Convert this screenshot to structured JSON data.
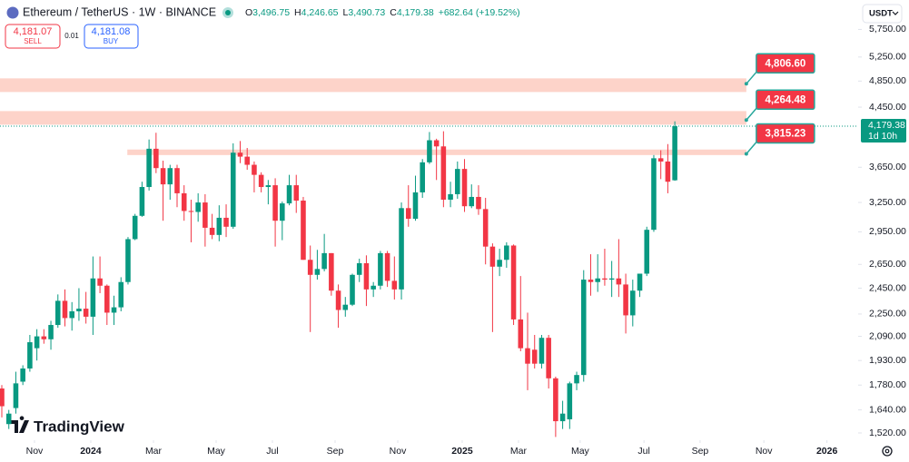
{
  "header": {
    "symbol": "Ethereum / TetherUS · 1W · BINANCE",
    "ohlc": [
      {
        "key": "O",
        "value": "3,496.75"
      },
      {
        "key": "H",
        "value": "4,246.65"
      },
      {
        "key": "L",
        "value": "3,490.73"
      },
      {
        "key": "C",
        "value": "4,179.38"
      }
    ],
    "change": "+682.64 (+19.52%)",
    "sell": {
      "price": "4,181.07",
      "label": "SELL"
    },
    "spread": "0.01",
    "buy": {
      "price": "4,181.08",
      "label": "BUY"
    },
    "currency": "USDT",
    "logo": "TradingView"
  },
  "chart_data": {
    "type": "candlestick",
    "log_scale": true,
    "up_color": "#089981",
    "down_color": "#f23645",
    "open": [
      1760,
      1565,
      1650,
      1800,
      1880,
      2010,
      2090,
      2070,
      2170,
      2350,
      2220,
      2270,
      2290,
      2230,
      2530,
      2470,
      2260,
      2300,
      2500,
      2880,
      3110,
      3420,
      3880,
      3640,
      3450,
      3640,
      3350,
      3160,
      3150,
      3250,
      2990,
      2920,
      3090,
      3000,
      3830,
      3780,
      3680,
      3560,
      3420,
      3440,
      3060,
      3240,
      3440,
      3270,
      2690,
      2560,
      2610,
      2750,
      2430,
      2280,
      2320,
      2560,
      2660,
      2440,
      2470,
      2750,
      2510,
      2440,
      3190,
      3080,
      3360,
      3710,
      3990,
      3910,
      3280,
      3340,
      3630,
      3210,
      3310,
      3180,
      2810,
      2630,
      2690,
      2820,
      2210,
      2010,
      2000,
      1910,
      2080,
      1820,
      1580,
      1590,
      1790,
      1840,
      2520,
      2500,
      2530,
      2520,
      2530,
      2480,
      2240,
      2430,
      2570,
      2970,
      3760,
      3720,
      3496.75
    ],
    "high": [
      1780,
      1640,
      1860,
      1900,
      2100,
      2140,
      2140,
      2200,
      2400,
      2440,
      2340,
      2450,
      2420,
      2720,
      2720,
      2480,
      2390,
      2540,
      2900,
      3130,
      3480,
      4000,
      4090,
      3730,
      3680,
      3680,
      3440,
      3280,
      3350,
      3340,
      3130,
      3220,
      3230,
      3950,
      3980,
      3890,
      3720,
      3590,
      3500,
      3520,
      3260,
      3560,
      3560,
      3310,
      2820,
      2780,
      2930,
      2750,
      2480,
      2380,
      2570,
      2700,
      2730,
      2500,
      2770,
      2770,
      2720,
      3250,
      3440,
      3550,
      3750,
      4100,
      4010,
      4110,
      3480,
      3720,
      3750,
      3450,
      3440,
      3300,
      2840,
      2790,
      2850,
      2830,
      2550,
      2260,
      2100,
      2100,
      2100,
      1830,
      1690,
      1800,
      1860,
      2600,
      2740,
      2740,
      2790,
      2680,
      2880,
      2570,
      2520,
      2570,
      3000,
      3800,
      3860,
      3940,
      4246.65
    ],
    "low": [
      1600,
      1540,
      1620,
      1780,
      1860,
      1930,
      2040,
      2000,
      2150,
      2160,
      2130,
      2200,
      2180,
      2100,
      2410,
      2170,
      2170,
      2270,
      2480,
      2870,
      3100,
      3380,
      3580,
      3060,
      3280,
      3200,
      3060,
      2850,
      3050,
      2810,
      2880,
      2860,
      2900,
      2980,
      3700,
      3620,
      3360,
      3360,
      3230,
      2810,
      2870,
      3220,
      3140,
      2690,
      2120,
      2520,
      2590,
      2390,
      2150,
      2230,
      2310,
      2500,
      2310,
      2380,
      2440,
      2460,
      2360,
      2360,
      3000,
      3060,
      3300,
      3690,
      3500,
      3200,
      3200,
      3290,
      3150,
      3190,
      3120,
      2650,
      2120,
      2550,
      2620,
      2170,
      1990,
      1750,
      1880,
      1880,
      1760,
      1500,
      1540,
      1540,
      1750,
      1800,
      2390,
      2420,
      2470,
      2380,
      2380,
      2110,
      2160,
      2380,
      2550,
      2950,
      3510,
      3350,
      3490.73
    ],
    "close": [
      1660,
      1620,
      1790,
      1880,
      2050,
      2090,
      2070,
      2170,
      2350,
      2220,
      2270,
      2290,
      2230,
      2530,
      2470,
      2260,
      2300,
      2500,
      2880,
      3110,
      3420,
      3880,
      3640,
      3450,
      3640,
      3350,
      3160,
      3150,
      3250,
      2990,
      2920,
      3090,
      3000,
      3830,
      3780,
      3680,
      3560,
      3420,
      3440,
      3060,
      3240,
      3440,
      3270,
      2690,
      2560,
      2610,
      2750,
      2430,
      2280,
      2320,
      2560,
      2660,
      2440,
      2470,
      2750,
      2510,
      2440,
      3190,
      3080,
      3360,
      3710,
      3990,
      3910,
      3280,
      3340,
      3630,
      3210,
      3310,
      3180,
      2810,
      2630,
      2690,
      2820,
      2210,
      2010,
      1910,
      1910,
      2080,
      1820,
      1580,
      1620,
      1790,
      1840,
      2520,
      2500,
      2530,
      2520,
      2530,
      2480,
      2240,
      2430,
      2570,
      2970,
      3760,
      3720,
      3480,
      4179.38
    ],
    "xlim": [
      -0.26,
      122.15
    ],
    "xticks": [
      {
        "value": 4.66,
        "label": "Nov"
      },
      {
        "value": 12.69,
        "label": "2024"
      },
      {
        "value": 21.63,
        "label": "Mar"
      },
      {
        "value": 30.57,
        "label": "May"
      },
      {
        "value": 38.6,
        "label": "Jul"
      },
      {
        "value": 47.54,
        "label": "Sep"
      },
      {
        "value": 56.48,
        "label": "Nov"
      },
      {
        "value": 65.67,
        "label": "2025"
      },
      {
        "value": 73.7,
        "label": "Mar"
      },
      {
        "value": 82.5,
        "label": "May"
      },
      {
        "value": 91.6,
        "label": "Jul"
      },
      {
        "value": 99.6,
        "label": "Sep"
      },
      {
        "value": 108.7,
        "label": "Nov"
      },
      {
        "value": 117.7,
        "label": "2026"
      }
    ],
    "ylim": [
      1484,
      6336
    ],
    "yticks": [
      {
        "value": 5750,
        "label": "5,750.00"
      },
      {
        "value": 5250,
        "label": "5,250.00"
      },
      {
        "value": 4850,
        "label": "4,850.00"
      },
      {
        "value": 4450,
        "label": "4,450.00"
      },
      {
        "value": 3650,
        "label": "3,650.00"
      },
      {
        "value": 3250,
        "label": "3,250.00"
      },
      {
        "value": 2950,
        "label": "2,950.00"
      },
      {
        "value": 2650,
        "label": "2,650.00"
      },
      {
        "value": 2450,
        "label": "2,450.00"
      },
      {
        "value": 2250,
        "label": "2,250.00"
      },
      {
        "value": 2090,
        "label": "2,090.00"
      },
      {
        "value": 1930,
        "label": "1,930.00"
      },
      {
        "value": 1780,
        "label": "1,780.00"
      },
      {
        "value": 1640,
        "label": "1,640.00"
      },
      {
        "value": 1520,
        "label": "1,520.00"
      }
    ],
    "zones": [
      {
        "low": 4678,
        "high": 4893,
        "from": -0.26,
        "to": 106.2
      },
      {
        "low": 4200,
        "high": 4393,
        "from": -0.26,
        "to": 106.2
      },
      {
        "low": 3800,
        "high": 3870,
        "from": 17.9,
        "to": 106.2
      }
    ],
    "zone_color": "#fdd3c9",
    "callouts": [
      {
        "value": 4806.6,
        "label": "4,806.60"
      },
      {
        "value": 4264.48,
        "label": "4,264.48"
      },
      {
        "value": 3815.23,
        "label": "3,815.23"
      }
    ],
    "last_price": {
      "value": 4179.38,
      "label": "4,179.38"
    },
    "countdown": "1d 10h"
  }
}
